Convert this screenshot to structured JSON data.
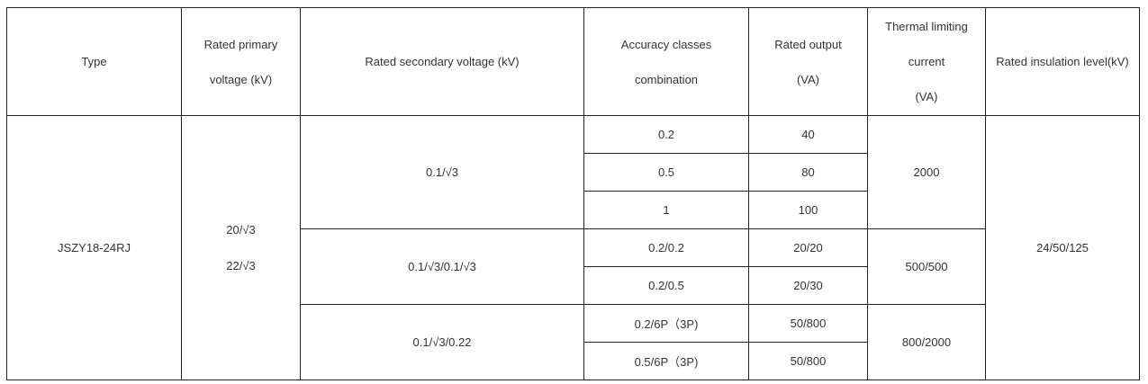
{
  "table": {
    "header": [
      [
        "Type"
      ],
      [
        "Rated primary",
        "voltage (kV)"
      ],
      [
        "Rated secondary voltage (kV)"
      ],
      [
        "Accuracy classes",
        "combination"
      ],
      [
        "Rated output",
        "(VA)"
      ],
      [
        "Thermal limiting",
        "current",
        "(VA)"
      ],
      [
        "Rated insulation level(kV)"
      ]
    ],
    "type": "JSZY18-24RJ",
    "primary_voltage": [
      "20/√3",
      "22/√3"
    ],
    "insulation_level": "24/50/125",
    "groups": [
      {
        "secondary_voltage": "0.1/√3",
        "thermal_current": "2000",
        "rows": [
          [
            "0.2",
            "40"
          ],
          [
            "0.5",
            "80"
          ],
          [
            "1",
            "100"
          ]
        ]
      },
      {
        "secondary_voltage": "0.1/√3/0.1/√3",
        "thermal_current": "500/500",
        "rows": [
          [
            "0.2/0.2",
            "20/20"
          ],
          [
            "0.2/0.5",
            "20/30"
          ]
        ]
      },
      {
        "secondary_voltage": "0.1/√3/0.22",
        "thermal_current": "800/2000",
        "rows": [
          [
            "0.2/6P（3P)",
            "50/800"
          ],
          [
            "0.5/6P（3P)",
            "50/800"
          ]
        ]
      }
    ]
  }
}
